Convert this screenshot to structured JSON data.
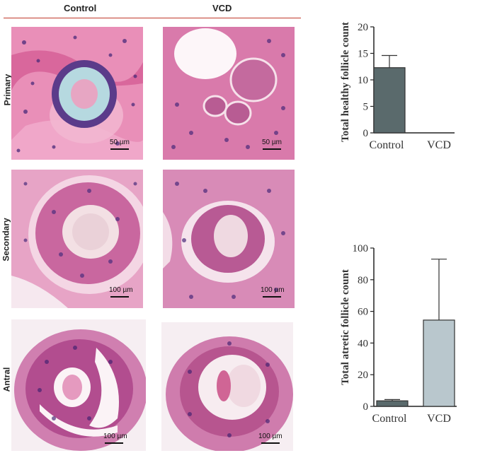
{
  "figure": {
    "column_headers": [
      "Control",
      "VCD"
    ],
    "row_labels": [
      "Primary",
      "Secondary",
      "Antral"
    ],
    "scale_labels": {
      "primary_control": "50 µm",
      "primary_vcd": "50 µm",
      "secondary_control": "100 µm",
      "secondary_vcd": "100 µm",
      "antral_control": "100 µm",
      "antral_vcd": "100 µm"
    }
  },
  "chart_data": [
    {
      "type": "bar",
      "categories": [
        "Control",
        "VCD"
      ],
      "values": [
        12.3,
        0
      ],
      "error": [
        2.3,
        0
      ],
      "ylabel": "Total healthy follicle count",
      "ylim": [
        0,
        20
      ],
      "yticks": [
        0,
        5,
        10,
        15,
        20
      ],
      "colors": [
        "#5a6a6c",
        "#b9c7cd"
      ]
    },
    {
      "type": "bar",
      "categories": [
        "Control",
        "VCD"
      ],
      "values": [
        3.5,
        54.5
      ],
      "error": [
        0.8,
        38.5
      ],
      "ylabel": "Total atretic follicle count",
      "ylim": [
        0,
        100
      ],
      "yticks": [
        0,
        20,
        40,
        60,
        80,
        100
      ],
      "colors": [
        "#5a6a6c",
        "#b9c7cd"
      ]
    }
  ]
}
